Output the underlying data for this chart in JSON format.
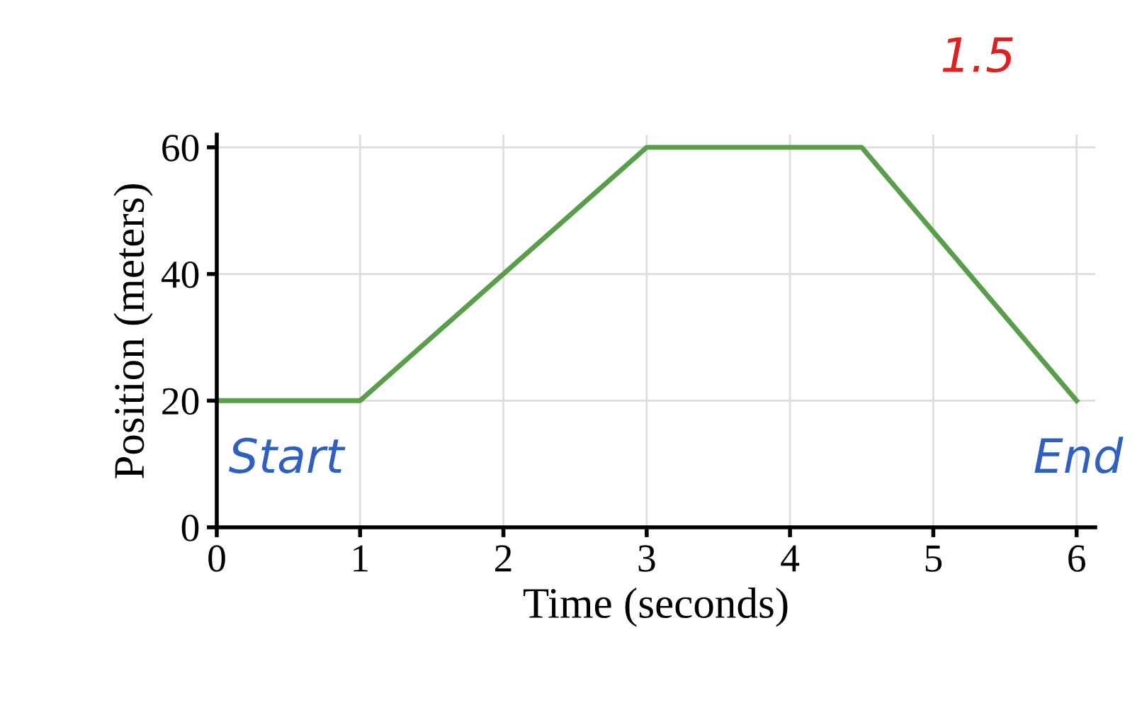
{
  "chart_data": {
    "type": "line",
    "xlabel": "Time (seconds)",
    "ylabel": "Position (meters)",
    "x": [
      0,
      1,
      3,
      4.5,
      6
    ],
    "series": [
      {
        "color": "#5a9e4b",
        "values": [
          20,
          20,
          60,
          60,
          20
        ]
      }
    ],
    "xlim": [
      0,
      6.13
    ],
    "ylim": [
      0,
      62
    ],
    "xticks": [
      0,
      1,
      2,
      3,
      4,
      5,
      6
    ],
    "yticks": [
      0,
      20,
      40,
      60
    ],
    "grid": true,
    "annotations": [
      {
        "text": "Start",
        "x": 0,
        "y": 20
      },
      {
        "text": "End",
        "x": 6,
        "y": 20
      },
      {
        "text": "1.5",
        "x": 4.5,
        "y": 60
      }
    ]
  }
}
